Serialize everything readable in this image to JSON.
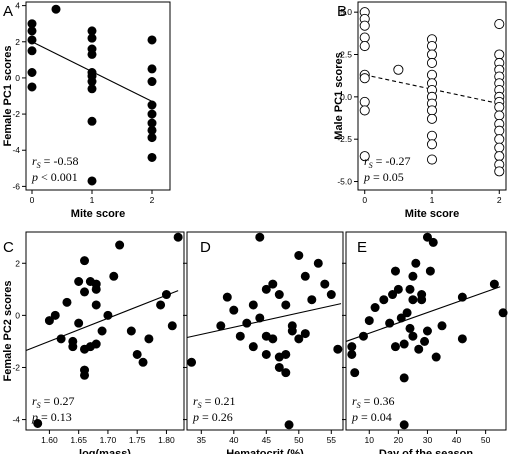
{
  "chart_data": [
    {
      "panel": "A",
      "type": "scatter",
      "xlabel": "Mite score",
      "ylabel": "Female PC1 scores",
      "xlim": [
        -0.1,
        2.3
      ],
      "ylim": [
        -6.2,
        4.2
      ],
      "xticks": [
        0,
        1,
        2
      ],
      "yticks": [
        -6,
        -4,
        -2,
        0,
        2,
        4
      ],
      "marker": "filled",
      "points": [
        [
          0,
          3.0
        ],
        [
          0,
          2.6
        ],
        [
          0,
          2.1
        ],
        [
          0,
          1.5
        ],
        [
          0,
          0.3
        ],
        [
          0,
          -0.5
        ],
        [
          0.4,
          3.8
        ],
        [
          1,
          2.6
        ],
        [
          1,
          2.2
        ],
        [
          1,
          1.6
        ],
        [
          1,
          1.3
        ],
        [
          1,
          0.3
        ],
        [
          1,
          0.1
        ],
        [
          1,
          -0.2
        ],
        [
          1,
          -0.6
        ],
        [
          1,
          -2.4
        ],
        [
          1,
          -5.7
        ],
        [
          2,
          2.1
        ],
        [
          2,
          0.5
        ],
        [
          2,
          -0.2
        ],
        [
          2,
          -1.5
        ],
        [
          2,
          -2.0
        ],
        [
          2,
          -2.5
        ],
        [
          2,
          -2.9
        ],
        [
          2,
          -3.3
        ],
        [
          2,
          -4.4
        ]
      ],
      "trend": {
        "style": "solid",
        "x": [
          0,
          2
        ],
        "y": [
          2.0,
          -1.3
        ]
      },
      "stats": {
        "rs": "-0.58",
        "p": "< 0.001"
      }
    },
    {
      "panel": "B",
      "type": "scatter",
      "xlabel": "Mite score",
      "ylabel": "Male PC1 scores",
      "xlim": [
        -0.1,
        2.1
      ],
      "ylim": [
        -5.5,
        5.6
      ],
      "xticks": [
        0,
        1,
        2
      ],
      "yticks": [
        -5.0,
        -2.5,
        0.0,
        2.5,
        5.0
      ],
      "marker": "open",
      "points": [
        [
          0,
          5.0
        ],
        [
          0,
          4.6
        ],
        [
          0,
          4.2
        ],
        [
          0,
          3.5
        ],
        [
          0,
          3.0
        ],
        [
          0,
          1.3
        ],
        [
          0,
          1.1
        ],
        [
          0,
          -0.3
        ],
        [
          0,
          -0.8
        ],
        [
          0,
          -3.5
        ],
        [
          0.5,
          1.6
        ],
        [
          1,
          3.4
        ],
        [
          1,
          3.0
        ],
        [
          1,
          2.5
        ],
        [
          1,
          2.0
        ],
        [
          1,
          1.3
        ],
        [
          1,
          0.8
        ],
        [
          1,
          0.4
        ],
        [
          1,
          0.0
        ],
        [
          1,
          -0.4
        ],
        [
          1,
          -0.8
        ],
        [
          1,
          -1.3
        ],
        [
          1,
          -2.3
        ],
        [
          1,
          -2.8
        ],
        [
          1,
          -3.7
        ],
        [
          2,
          4.3
        ],
        [
          2,
          2.5
        ],
        [
          2,
          2.0
        ],
        [
          2,
          1.6
        ],
        [
          2,
          1.2
        ],
        [
          2,
          0.8
        ],
        [
          2,
          0.4
        ],
        [
          2,
          0.0
        ],
        [
          2,
          -0.3
        ],
        [
          2,
          -0.6
        ],
        [
          2,
          -1.1
        ],
        [
          2,
          -1.6
        ],
        [
          2,
          -2.0
        ],
        [
          2,
          -2.5
        ],
        [
          2,
          -3.0
        ],
        [
          2,
          -3.5
        ],
        [
          2,
          -4.0
        ],
        [
          2,
          -4.4
        ]
      ],
      "trend": {
        "style": "dashed",
        "x": [
          0,
          2
        ],
        "y": [
          1.3,
          -0.4
        ]
      },
      "stats": {
        "rs": "-0.27",
        "p": "= 0.05"
      }
    },
    {
      "panel": "C",
      "type": "scatter",
      "xlabel": "log(mass)",
      "ylabel": "Female PC2 scores",
      "xlim": [
        1.56,
        1.83
      ],
      "ylim": [
        -4.4,
        3.2
      ],
      "xticks": [
        1.6,
        1.65,
        1.7,
        1.75,
        1.8
      ],
      "xtick_labels": [
        "1.60",
        "1.65",
        "1.70",
        "1.75",
        "1.80"
      ],
      "yticks": [
        -4,
        -2,
        0,
        2
      ],
      "marker": "filled",
      "points": [
        [
          1.58,
          -4.15
        ],
        [
          1.6,
          -0.2
        ],
        [
          1.61,
          0.0
        ],
        [
          1.62,
          -0.9
        ],
        [
          1.63,
          0.5
        ],
        [
          1.64,
          -1.2
        ],
        [
          1.64,
          -1.0
        ],
        [
          1.65,
          -0.3
        ],
        [
          1.65,
          1.3
        ],
        [
          1.66,
          2.1
        ],
        [
          1.66,
          0.9
        ],
        [
          1.66,
          -1.3
        ],
        [
          1.66,
          -2.1
        ],
        [
          1.66,
          -2.3
        ],
        [
          1.67,
          -1.2
        ],
        [
          1.67,
          1.3
        ],
        [
          1.68,
          1.2
        ],
        [
          1.68,
          1.0
        ],
        [
          1.68,
          0.4
        ],
        [
          1.68,
          -1.1
        ],
        [
          1.69,
          -0.6
        ],
        [
          1.7,
          0.0
        ],
        [
          1.71,
          1.5
        ],
        [
          1.72,
          2.7
        ],
        [
          1.74,
          -0.6
        ],
        [
          1.75,
          -1.5
        ],
        [
          1.76,
          -1.8
        ],
        [
          1.77,
          -0.9
        ],
        [
          1.79,
          0.4
        ],
        [
          1.8,
          0.8
        ],
        [
          1.81,
          -0.4
        ],
        [
          1.82,
          3.0
        ]
      ],
      "trend": {
        "style": "solid",
        "x": [
          1.56,
          1.82
        ],
        "y": [
          -1.35,
          0.95
        ]
      },
      "stats": {
        "rs": "0.27",
        "p": "= 0.13"
      }
    },
    {
      "panel": "D",
      "type": "scatter",
      "xlabel": "Hematocrit (%)",
      "xlim": [
        32.8,
        56.8
      ],
      "ylim": [
        -4.4,
        3.2
      ],
      "xticks": [
        35,
        40,
        45,
        50,
        55
      ],
      "yticks": [
        -4,
        -2,
        0,
        2
      ],
      "marker": "filled",
      "points": [
        [
          33.5,
          -1.8
        ],
        [
          38,
          -0.4
        ],
        [
          39,
          0.7
        ],
        [
          40,
          0.2
        ],
        [
          41,
          -0.8
        ],
        [
          42,
          -0.3
        ],
        [
          43,
          -1.2
        ],
        [
          43,
          0.4
        ],
        [
          44,
          -0.1
        ],
        [
          44,
          3.0
        ],
        [
          45,
          -0.8
        ],
        [
          45,
          -1.5
        ],
        [
          45,
          1.0
        ],
        [
          46,
          1.2
        ],
        [
          46,
          -0.9
        ],
        [
          47,
          0.8
        ],
        [
          47,
          -1.6
        ],
        [
          47,
          -2.0
        ],
        [
          48,
          -1.5
        ],
        [
          48,
          -2.2
        ],
        [
          48,
          0.4
        ],
        [
          48.5,
          -4.2
        ],
        [
          49,
          -0.4
        ],
        [
          49,
          -0.6
        ],
        [
          50,
          2.3
        ],
        [
          50,
          -0.9
        ],
        [
          51,
          1.5
        ],
        [
          51,
          -0.7
        ],
        [
          52,
          0.6
        ],
        [
          53,
          2.0
        ],
        [
          54,
          1.2
        ],
        [
          55,
          0.8
        ],
        [
          56,
          -1.3
        ]
      ],
      "trend": {
        "style": "solid",
        "x": [
          32.8,
          56.5
        ],
        "y": [
          -0.85,
          0.45
        ]
      },
      "stats": {
        "rs": "0.21",
        "p": "= 0.26"
      }
    },
    {
      "panel": "E",
      "type": "scatter",
      "xlabel": "Day of the season",
      "xlim": [
        2,
        57
      ],
      "ylim": [
        -4.4,
        3.2
      ],
      "xticks": [
        10,
        20,
        30,
        40,
        50
      ],
      "yticks": [
        -4,
        -2,
        0,
        2
      ],
      "marker": "filled",
      "points": [
        [
          4,
          -1.2
        ],
        [
          4,
          -1.5
        ],
        [
          5,
          -2.2
        ],
        [
          8,
          -0.8
        ],
        [
          10,
          -0.2
        ],
        [
          12,
          0.3
        ],
        [
          15,
          0.6
        ],
        [
          17,
          -0.3
        ],
        [
          18,
          0.8
        ],
        [
          19,
          -1.2
        ],
        [
          19,
          1.7
        ],
        [
          20,
          1.0
        ],
        [
          21,
          -0.1
        ],
        [
          22,
          -1.1
        ],
        [
          22,
          -2.4
        ],
        [
          22,
          -4.2
        ],
        [
          23,
          0.1
        ],
        [
          24,
          1.0
        ],
        [
          24,
          -0.5
        ],
        [
          25,
          0.6
        ],
        [
          25,
          -0.8
        ],
        [
          25,
          1.5
        ],
        [
          26,
          2.0
        ],
        [
          27,
          -1.3
        ],
        [
          28,
          0.6
        ],
        [
          28,
          0.8
        ],
        [
          29,
          -1.0
        ],
        [
          30,
          3.0
        ],
        [
          30,
          -0.6
        ],
        [
          31,
          1.7
        ],
        [
          32,
          2.8
        ],
        [
          33,
          -1.6
        ],
        [
          35,
          -0.4
        ],
        [
          42,
          0.7
        ],
        [
          42,
          -0.9
        ],
        [
          53,
          1.2
        ],
        [
          56,
          0.1
        ]
      ],
      "trend": {
        "style": "solid",
        "x": [
          2,
          55
        ],
        "y": [
          -1.0,
          1.1
        ]
      },
      "stats": {
        "rs": "0.36",
        "p": "= 0.04"
      }
    }
  ]
}
